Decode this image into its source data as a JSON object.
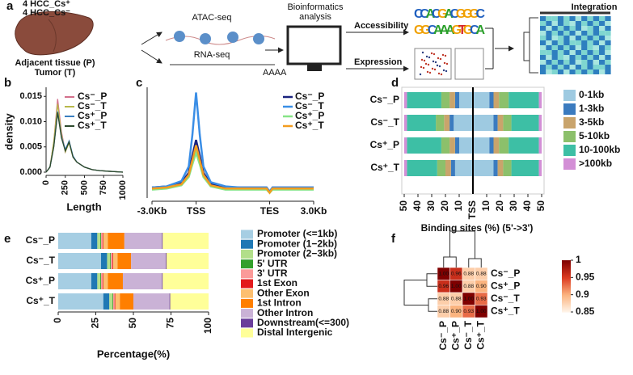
{
  "panel_labels": [
    "a",
    "b",
    "c",
    "d",
    "e",
    "f"
  ],
  "workflow": {
    "samples": [
      "4 HCC_Cs⁺",
      "4 HCC_Cs⁻"
    ],
    "tissue": [
      "Adjacent tissue (P)",
      "Tumor (T)"
    ],
    "assays": [
      "ATAC-seq",
      "RNA-seq"
    ],
    "polyA": "AAAA",
    "analysis": [
      "Bioinformatics",
      "analysis"
    ],
    "outputs": [
      "Accessibility",
      "Expression"
    ],
    "motif": [
      "CCACGACGGGC",
      "GGCAAAGTGCA"
    ],
    "integration": "Integration"
  },
  "chart_data": [
    {
      "type": "line",
      "ylabel": "density",
      "xlabel": "Length",
      "x": [
        0,
        50,
        100,
        150,
        200,
        250,
        300,
        350,
        400,
        500,
        600,
        700,
        800,
        1000
      ],
      "xlim": [
        0,
        1000
      ],
      "xticks": [
        0,
        250,
        500,
        750,
        1000
      ],
      "ylim": [
        0,
        0.016
      ],
      "yticks": [
        {
          "value": 0,
          "label": "0.000"
        },
        0.005,
        {
          "value": 0.01,
          "label": "0.010"
        },
        0.015
      ],
      "series": [
        {
          "name": "Cs⁻_P",
          "color": "#d3708c",
          "values": [
            0,
            0.001,
            0.006,
            0.0145,
            0.008,
            0.004,
            0.006,
            0.003,
            0.002,
            0.001,
            0.0005,
            0.0003,
            0.0002,
            0
          ]
        },
        {
          "name": "Cs⁻_T",
          "color": "#b8b84a",
          "values": [
            0,
            0.001,
            0.006,
            0.0135,
            0.0075,
            0.004,
            0.0058,
            0.003,
            0.002,
            0.001,
            0.0005,
            0.0003,
            0.0002,
            0
          ]
        },
        {
          "name": "Cs⁺_P",
          "color": "#3a7fc0",
          "values": [
            0,
            0.001,
            0.005,
            0.012,
            0.007,
            0.0045,
            0.0062,
            0.0032,
            0.002,
            0.001,
            0.0005,
            0.0003,
            0.0002,
            0
          ]
        },
        {
          "name": "Cs⁺_T",
          "color": "#2d4a2d",
          "values": [
            0,
            0.001,
            0.005,
            0.0118,
            0.0068,
            0.0042,
            0.006,
            0.003,
            0.002,
            0.001,
            0.0005,
            0.0003,
            0.0002,
            0
          ]
        }
      ]
    },
    {
      "type": "line",
      "x": [
        -3000,
        -2000,
        -1000,
        -500,
        -250,
        0,
        250,
        500,
        1000,
        2000,
        3000,
        4000,
        4800,
        5000,
        5200,
        6000,
        7000,
        8000
      ],
      "xlim": [
        -3000,
        8000
      ],
      "xticks": [
        {
          "value": -3000,
          "label": "-3.0Kb"
        },
        {
          "value": 0,
          "label": "TSS"
        },
        {
          "value": 5000,
          "label": "TES"
        },
        {
          "value": 8000,
          "label": "3.0Kb"
        }
      ],
      "ylim": [
        0,
        1.05
      ],
      "series": [
        {
          "name": "Cs⁻_P",
          "color": "#1a237e",
          "values": [
            0.1,
            0.11,
            0.14,
            0.24,
            0.4,
            0.55,
            0.4,
            0.24,
            0.13,
            0.1,
            0.1,
            0.1,
            0.1,
            0.06,
            0.1,
            0.1,
            0.1,
            0.1
          ]
        },
        {
          "name": "Cs⁻_T",
          "color": "#3a8ee6",
          "values": [
            0.1,
            0.11,
            0.16,
            0.3,
            0.6,
            1.0,
            0.6,
            0.3,
            0.15,
            0.11,
            0.1,
            0.1,
            0.1,
            0.06,
            0.1,
            0.1,
            0.1,
            0.1
          ]
        },
        {
          "name": "Cs⁺_P",
          "color": "#86e486",
          "values": [
            0.08,
            0.09,
            0.12,
            0.2,
            0.32,
            0.43,
            0.32,
            0.2,
            0.11,
            0.08,
            0.08,
            0.08,
            0.08,
            0.05,
            0.08,
            0.08,
            0.08,
            0.08
          ]
        },
        {
          "name": "Cs⁺_T",
          "color": "#f39c1f",
          "values": [
            0.09,
            0.1,
            0.13,
            0.22,
            0.36,
            0.5,
            0.36,
            0.22,
            0.12,
            0.09,
            0.09,
            0.09,
            0.09,
            0.05,
            0.09,
            0.09,
            0.09,
            0.09
          ]
        }
      ]
    },
    {
      "type": "bar",
      "xlabel": "Binding sites (%) (5'->3')",
      "categories": [
        "Cs⁻_P",
        "Cs⁻_T",
        "Cs⁺_P",
        "Cs⁺_T"
      ],
      "xlim": [
        0,
        50
      ],
      "xticks": [
        50,
        40,
        30,
        20,
        10
      ],
      "center_label": "TSS",
      "series": [
        {
          "name": "0-1kb",
          "color": "#9ecae1",
          "upstream": [
            10,
            14,
            10,
            13
          ],
          "downstream": [
            12,
            15,
            12,
            15
          ]
        },
        {
          "name": "1-3kb",
          "color": "#3b7bbf",
          "upstream": [
            3,
            3,
            3,
            3
          ],
          "downstream": [
            3,
            3,
            3,
            3
          ]
        },
        {
          "name": "3-5kb",
          "color": "#c9a46c",
          "upstream": [
            4,
            4,
            4,
            4
          ],
          "downstream": [
            4,
            4,
            4,
            4
          ]
        },
        {
          "name": "5-10kb",
          "color": "#8cc06b",
          "upstream": [
            6,
            6,
            6,
            6
          ],
          "downstream": [
            7,
            6,
            7,
            6
          ]
        },
        {
          "name": "10-100kb",
          "color": "#3dbfa5",
          "upstream": [
            25,
            21,
            25,
            22
          ],
          "downstream": [
            22,
            20,
            22,
            20
          ]
        },
        {
          "name": ">100kb",
          "color": "#d38fd6",
          "upstream": [
            2,
            2,
            2,
            2
          ],
          "downstream": [
            2,
            2,
            2,
            2
          ]
        }
      ]
    },
    {
      "type": "bar",
      "xlabel": "Percentage(%)",
      "categories": [
        "Cs⁻_P",
        "Cs⁻_T",
        "Cs⁺_P",
        "Cs⁺_T"
      ],
      "xlim": [
        0,
        100
      ],
      "xticks": [
        0,
        25,
        50,
        75,
        100
      ],
      "series": [
        {
          "name": "Promoter (<=1kb)",
          "color": "#a6cee3",
          "values": [
            22,
            28.5,
            22,
            30
          ]
        },
        {
          "name": "Promoter (1−2kb)",
          "color": "#1f78b4",
          "values": [
            4,
            4,
            4,
            4
          ]
        },
        {
          "name": "Promoter (2−3kb)",
          "color": "#b2df8a",
          "values": [
            2,
            2,
            2,
            2
          ]
        },
        {
          "name": "5' UTR",
          "color": "#33a02c",
          "values": [
            0.5,
            0.5,
            0.5,
            0.5
          ]
        },
        {
          "name": "3' UTR",
          "color": "#fb9a99",
          "values": [
            1,
            1,
            1,
            1
          ]
        },
        {
          "name": "1st Exon",
          "color": "#e31a1c",
          "values": [
            0.5,
            0.5,
            0.5,
            0.5
          ]
        },
        {
          "name": "Other Exon",
          "color": "#fdbf6f",
          "values": [
            3,
            3,
            3,
            3
          ]
        },
        {
          "name": "1st Intron",
          "color": "#ff7f00",
          "values": [
            11,
            9,
            10,
            9
          ]
        },
        {
          "name": "Other Intron",
          "color": "#cab2d6",
          "values": [
            25,
            23,
            26,
            24
          ]
        },
        {
          "name": "Downstream(<=300)",
          "color": "#6a3d9a",
          "values": [
            0.5,
            0.5,
            0.5,
            0.5
          ]
        },
        {
          "name": "Distal Intergenic",
          "color": "#ffff99",
          "values": [
            30.5,
            28,
            30.5,
            25.5
          ]
        }
      ]
    },
    {
      "type": "heatmap",
      "rows": [
        "Cs⁻_P",
        "Cs⁺_P",
        "Cs⁻_T",
        "Cs⁺_T"
      ],
      "columns": [
        "Cs⁻_P",
        "Cs⁺_P",
        "Cs⁻_T",
        "Cs⁺_T"
      ],
      "values": [
        [
          1,
          0.96,
          0.88,
          0.88
        ],
        [
          0.96,
          1,
          0.88,
          0.9
        ],
        [
          0.88,
          0.88,
          1,
          0.93
        ],
        [
          0.88,
          0.9,
          0.93,
          1
        ]
      ],
      "value_labels": [
        [
          "1.00",
          "0.96",
          "0.88",
          "0.88"
        ],
        [
          "0.96",
          "1.00",
          "0.88",
          "0.90"
        ],
        [
          "0.88",
          "0.88",
          "1.00",
          "0.93"
        ],
        [
          "0.88",
          "0.90",
          "0.93",
          "1.00"
        ]
      ],
      "clim": [
        0.85,
        1
      ],
      "cticks": [
        1,
        0.95,
        0.9,
        0.85
      ],
      "colors": [
        "#fff5eb",
        "#fbb47f",
        "#dc3b22",
        "#7f0000"
      ]
    }
  ]
}
